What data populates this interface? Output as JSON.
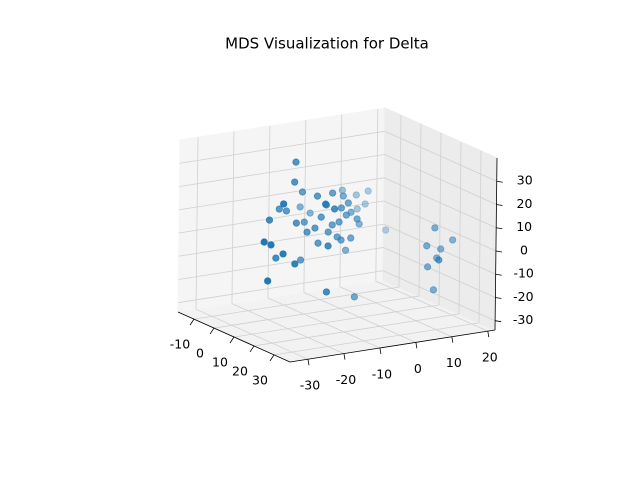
{
  "chart_data": {
    "type": "scatter3d",
    "title": "MDS Visualization for Delta",
    "color": "#1f77b4",
    "grid": true,
    "xlim": [
      -18,
      38
    ],
    "ylim": [
      -35,
      22
    ],
    "zlim": [
      -34,
      40
    ],
    "xticks": [
      -10,
      0,
      10,
      20,
      30
    ],
    "yticks": [
      -30,
      -20,
      -10,
      0,
      10,
      20
    ],
    "zticks": [
      -30,
      -20,
      -10,
      0,
      10,
      20,
      30
    ],
    "x": [
      10,
      10,
      5,
      10,
      10,
      -5,
      -5,
      -5,
      -5,
      5,
      5,
      -5,
      -5,
      10,
      10,
      10,
      5,
      10,
      10,
      5,
      10,
      10,
      10,
      10,
      10,
      5,
      -5,
      10,
      20,
      5,
      20,
      20,
      10,
      20,
      20,
      20,
      10,
      20,
      5,
      20,
      20,
      10,
      5,
      10,
      10,
      10,
      -5,
      10,
      10,
      20,
      20,
      20,
      20,
      20,
      20,
      30,
      20,
      20
    ],
    "y": [
      -18.3,
      -18.6,
      -13.6,
      -12.2,
      -8.0,
      3.1,
      7.0,
      10.3,
      9.5,
      -20.0,
      -18.0,
      -8.6,
      -5.8,
      -9.7,
      -5.5,
      -4.1,
      0.0,
      -6.1,
      -11.1,
      -13.0,
      -18.0,
      -12.8,
      -9.1,
      -5.5,
      -2.8,
      2.3,
      15.3,
      -11.9,
      -14.7,
      -1.4,
      -27.2,
      -15.5,
      -25.5,
      -32.5,
      -30.6,
      -27.2,
      -23.6,
      -23.9,
      -13.9,
      -31.4,
      -15.0,
      -1.6,
      -2.2,
      -1.1,
      -8.0,
      -15.0,
      7.3,
      -3.6,
      -6.6,
      -13.0,
      15.0,
      12.8,
      16.7,
      20.0,
      15.6,
      10.6,
      13.1,
      14.8
    ],
    "z": [
      37.2,
      28.7,
      21.3,
      21.1,
      21.4,
      14.2,
      11.2,
      12.1,
      6.7,
      15.5,
      14.2,
      9.8,
      6.5,
      16.7,
      14.4,
      11.0,
      9.3,
      8.5,
      11.8,
      8.2,
      10.9,
      7.5,
      4.9,
      0.6,
      0.8,
      3.7,
      -5.9,
      0.8,
      4.1,
      -6.7,
      25.2,
      22.3,
      14.0,
      10.1,
      8.4,
      3.7,
      -2.8,
      -1.4,
      -7.9,
      -6.9,
      -15.6,
      -24.8,
      16.8,
      8.6,
      7.7,
      6.3,
      5.1,
      16.1,
      2.2,
      19.6,
      4.7,
      -2.5,
      -4.8,
      -1.7,
      -8.4,
      -4.2,
      -11.6,
      -21.9
    ]
  }
}
